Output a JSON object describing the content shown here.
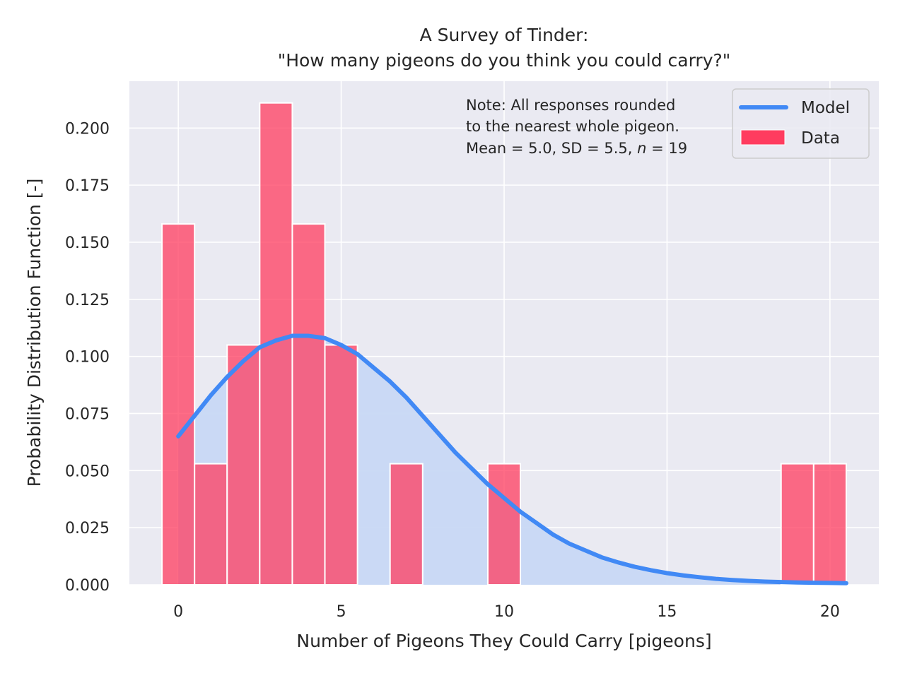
{
  "chart_data": {
    "type": "bar",
    "title_line1": "A Survey of Tinder:",
    "title_line2": "\"How many pigeons do you think you could carry?\"",
    "xlabel": "Number of Pigeons They Could Carry [pigeons]",
    "ylabel": "Probability Distribution Function [-]",
    "xlim": [
      -1.5,
      21.5
    ],
    "ylim": [
      0,
      0.2205
    ],
    "xticks": [
      0,
      5,
      10,
      15,
      20
    ],
    "xtick_labels": [
      "0",
      "5",
      "10",
      "15",
      "20"
    ],
    "yticks": [
      0,
      0.025,
      0.05,
      0.075,
      0.1,
      0.125,
      0.15,
      0.175,
      0.2
    ],
    "ytick_labels": [
      "0.000",
      "0.025",
      "0.050",
      "0.075",
      "0.100",
      "0.125",
      "0.150",
      "0.175",
      "0.200"
    ],
    "grid": true,
    "legend_position": "top-right",
    "note_lines": [
      "Note: All responses rounded",
      "to the nearest whole pigeon."
    ],
    "note_stats": {
      "prefix": "Mean = 5.0, SD = 5.5, ",
      "n_symbol": "n",
      "suffix": " = 19"
    },
    "series": [
      {
        "name": "Data",
        "kind": "histogram",
        "bin_width": 1,
        "x": [
          0,
          1,
          2,
          3,
          4,
          5,
          7,
          10,
          19,
          20
        ],
        "values": [
          0.158,
          0.053,
          0.105,
          0.211,
          0.158,
          0.105,
          0.053,
          0.053,
          0.053,
          0.053
        ],
        "color": "#ff3c5f"
      },
      {
        "name": "Model",
        "kind": "line",
        "x": [
          0,
          0.5,
          1,
          1.5,
          2,
          2.5,
          3,
          3.5,
          4,
          4.5,
          5,
          5.5,
          6,
          6.5,
          7,
          7.5,
          8,
          8.5,
          9,
          9.5,
          10,
          10.5,
          11,
          11.5,
          12,
          12.5,
          13,
          13.5,
          14,
          14.5,
          15,
          15.5,
          16,
          16.5,
          17,
          17.5,
          18,
          18.5,
          19,
          19.5,
          20,
          20.5
        ],
        "values": [
          0.065,
          0.074,
          0.083,
          0.091,
          0.098,
          0.104,
          0.107,
          0.109,
          0.109,
          0.108,
          0.105,
          0.101,
          0.095,
          0.089,
          0.082,
          0.074,
          0.066,
          0.058,
          0.051,
          0.044,
          0.038,
          0.032,
          0.027,
          0.022,
          0.018,
          0.015,
          0.012,
          0.0098,
          0.0079,
          0.0064,
          0.0051,
          0.0041,
          0.0033,
          0.0026,
          0.0021,
          0.0017,
          0.0014,
          0.0012,
          0.001,
          0.0009,
          0.0008,
          0.0007
        ],
        "color": "#4189f5",
        "fill_color": "#c8d8f4"
      }
    ]
  }
}
